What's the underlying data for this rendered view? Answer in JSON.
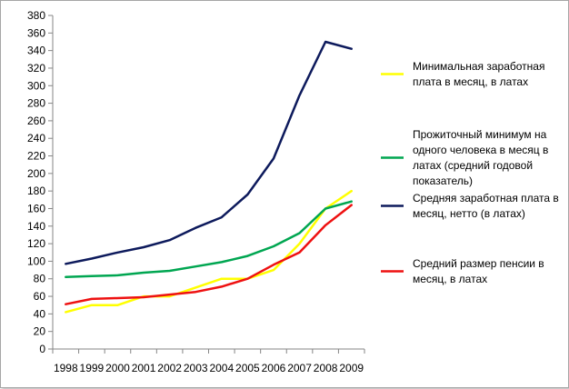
{
  "chart_data": {
    "type": "line",
    "categories": [
      "1998",
      "1999",
      "2000",
      "2001",
      "2002",
      "2003",
      "2004",
      "2005",
      "2006",
      "2007",
      "2008",
      "2009"
    ],
    "ylim": [
      0,
      380
    ],
    "ystep": 20,
    "grid": false,
    "legend_position": "right",
    "series": [
      {
        "name": "Минимальная заработная плата в месяц, в латах",
        "legend_lines": [
          "Минимальная заработная",
          "плата в месяц, в латах"
        ],
        "color": "#ffff00",
        "values": [
          42,
          50,
          50,
          60,
          60,
          70,
          80,
          80,
          90,
          120,
          160,
          180
        ]
      },
      {
        "name": "Прожиточный минимум на одного человека в месяц в латах (средний годовой показатель)",
        "legend_lines": [
          "Прожиточный минимум на",
          "одного человека в месяц в",
          "латах (средний годовой",
          "показатель)"
        ],
        "color": "#00a651",
        "values": [
          82,
          83,
          84,
          87,
          89,
          94,
          99,
          106,
          117,
          132,
          160,
          168
        ]
      },
      {
        "name": "Средняя заработная плата в месяц, нетто (в латах)",
        "legend_lines": [
          "Средняя заработная плата в",
          "месяц, нетто (в латах)"
        ],
        "color": "#0d1a5c",
        "values": [
          97,
          103,
          110,
          116,
          124,
          138,
          150,
          176,
          217,
          289,
          350,
          342
        ]
      },
      {
        "name": "Средний размер пенсии в месяц, в латах",
        "legend_lines": [
          "Средний размер пенсии в",
          "месяц, в латах"
        ],
        "color": "#ee1111",
        "values": [
          51,
          57,
          58,
          59,
          62,
          65,
          71,
          80,
          96,
          110,
          141,
          164
        ]
      }
    ]
  }
}
